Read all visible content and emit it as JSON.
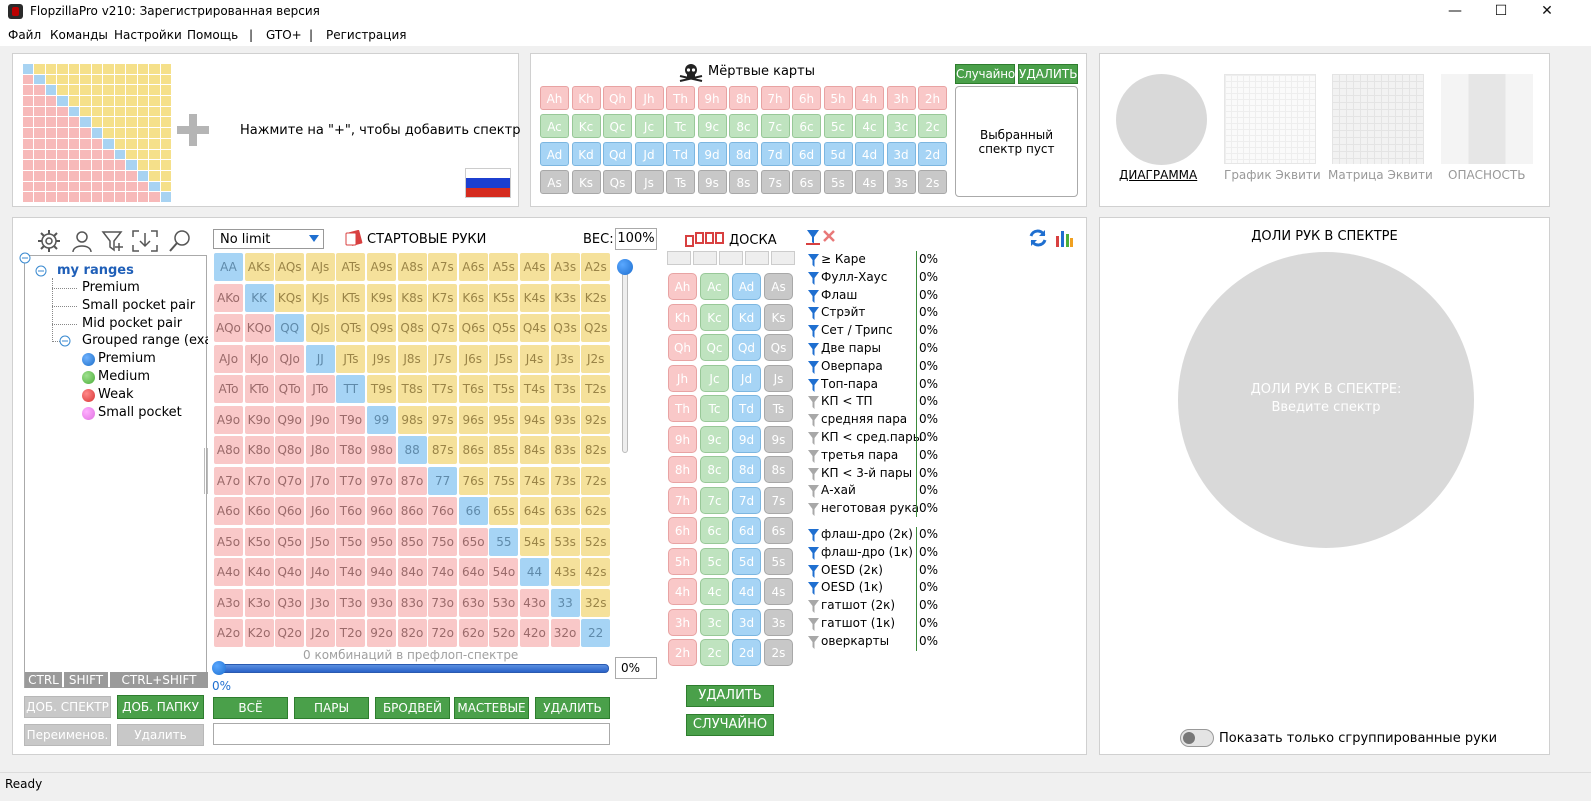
{
  "window": {
    "title": "FlopzillaPro v210: Зарегистрированная версия",
    "minimize": "—",
    "maximize": "☐",
    "close": "✕"
  },
  "menu": [
    "Файл",
    "Команды",
    "Настройки",
    "Помощь",
    "|",
    "GTO+",
    "|",
    "Регистрация"
  ],
  "range_panel": {
    "hint": "Нажмите на \"+\", чтобы добавить спектр",
    "plus": "+"
  },
  "dead_cards": {
    "title": "Мёртвые карты",
    "random_button": "Случайно",
    "delete_button": "УДАЛИТЬ",
    "selected_text": "Выбранный спектр пуст",
    "rows": [
      {
        "suit": "h",
        "cards": [
          "Ah",
          "Kh",
          "Qh",
          "Jh",
          "Th",
          "9h",
          "8h",
          "7h",
          "6h",
          "5h",
          "4h",
          "3h",
          "2h"
        ]
      },
      {
        "suit": "c",
        "cards": [
          "Ac",
          "Kc",
          "Qc",
          "Jc",
          "Tc",
          "9c",
          "8c",
          "7c",
          "6c",
          "5c",
          "4c",
          "3c",
          "2c"
        ]
      },
      {
        "suit": "d",
        "cards": [
          "Ad",
          "Kd",
          "Qd",
          "Jd",
          "Td",
          "9d",
          "8d",
          "7d",
          "6d",
          "5d",
          "4d",
          "3d",
          "2d"
        ]
      },
      {
        "suit": "s",
        "cards": [
          "As",
          "Ks",
          "Qs",
          "Js",
          "Ts",
          "9s",
          "8s",
          "7s",
          "6s",
          "5s",
          "4s",
          "3s",
          "2s"
        ]
      }
    ]
  },
  "views": {
    "tabs": [
      "ДИАГРАММА",
      "График Эквити",
      "Матрица Эквити",
      "ОПАСНОСТЬ"
    ],
    "pie_small_text": ""
  },
  "left_tree": {
    "root": "my ranges",
    "items": [
      "Premium",
      "Small pocket pair",
      "Mid pocket pair",
      "Grouped range (exar"
    ],
    "sub_items": [
      {
        "label": "Premium",
        "color": "#1e6fc8"
      },
      {
        "label": "Medium",
        "color": "#4caf3a"
      },
      {
        "label": "Weak",
        "color": "#d83434"
      },
      {
        "label": "Small pocket",
        "color": "#e070e0"
      }
    ],
    "modifiers": [
      "CTRL",
      "SHIFT",
      "CTRL+SHIFT"
    ],
    "buttons": {
      "add_range": "ДОБ. СПЕКТР",
      "add_folder": "ДОБ. ПАПКУ",
      "rename": "Переименов.",
      "delete": "Удалить"
    }
  },
  "start_hands": {
    "game_select": "No limit",
    "title": "СТАРТОВЫЕ РУКИ",
    "weight_label": "ВЕС:",
    "weight_value": "100%",
    "ranks": [
      "A",
      "K",
      "Q",
      "J",
      "T",
      "9",
      "8",
      "7",
      "6",
      "5",
      "4",
      "3",
      "2"
    ],
    "combos_text": "0 комбинаций в префлоп-спектре",
    "slider_value": "0%",
    "slider_min_label": "0%",
    "buttons": [
      "ВСЁ",
      "ПАРЫ",
      "БРОДВЕЙ",
      "МАСТЕВЫЕ",
      "УДАЛИТЬ"
    ]
  },
  "board": {
    "title": "ДОСКА",
    "ranks": [
      "A",
      "K",
      "Q",
      "J",
      "T",
      "9",
      "8",
      "7",
      "6",
      "5",
      "4",
      "3",
      "2"
    ],
    "suits": [
      "h",
      "c",
      "d",
      "s"
    ],
    "delete_button": "УДАЛИТЬ",
    "random_button": "СЛУЧАЙНО"
  },
  "hand_stats": {
    "group1": [
      {
        "label": "≥ Каре",
        "value": "0%",
        "active": true
      },
      {
        "label": "Фулл-Хаус",
        "value": "0%",
        "active": true
      },
      {
        "label": "Флаш",
        "value": "0%",
        "active": true
      },
      {
        "label": "Стрэйт",
        "value": "0%",
        "active": true
      },
      {
        "label": "Сет / Трипс",
        "value": "0%",
        "active": true
      },
      {
        "label": "Две пары",
        "value": "0%",
        "active": true
      },
      {
        "label": "Оверпара",
        "value": "0%",
        "active": true
      },
      {
        "label": "Топ-пара",
        "value": "0%",
        "active": true
      },
      {
        "label": "КП < ТП",
        "value": "0%",
        "active": false
      },
      {
        "label": "средняя пара",
        "value": "0%",
        "active": false
      },
      {
        "label": "КП < сред.пары",
        "value": "0%",
        "active": false
      },
      {
        "label": "третья пара",
        "value": "0%",
        "active": false
      },
      {
        "label": "КП < 3-й пары",
        "value": "0%",
        "active": false
      },
      {
        "label": "А-хай",
        "value": "0%",
        "active": false
      },
      {
        "label": "неготовая рука",
        "value": "0%",
        "active": false
      }
    ],
    "group2": [
      {
        "label": "флаш-дро (2к)",
        "value": "0%",
        "active": true
      },
      {
        "label": "флаш-дро (1к)",
        "value": "0%",
        "active": true
      },
      {
        "label": "OESD (2к)",
        "value": "0%",
        "active": true
      },
      {
        "label": "OESD (1к)",
        "value": "0%",
        "active": true
      },
      {
        "label": "гатшот (2к)",
        "value": "0%",
        "active": false
      },
      {
        "label": "гатшот (1к)",
        "value": "0%",
        "active": false
      },
      {
        "label": "оверкарты",
        "value": "0%",
        "active": false
      }
    ]
  },
  "right_panel": {
    "title": "ДОЛИ РУК В СПЕКТРЕ",
    "pie_line1": "ДОЛИ РУК В СПЕКТРЕ:",
    "pie_line2": "Введите спектр",
    "toggle_label": "Показать только сгруппированные руки"
  },
  "status": "Ready"
}
